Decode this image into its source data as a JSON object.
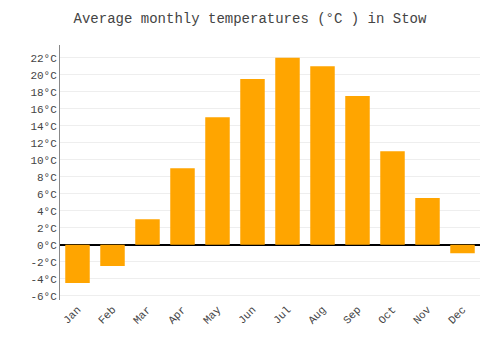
{
  "chart_data": {
    "type": "bar",
    "title": "Average monthly temperatures (°C ) in Stow",
    "categories": [
      "Jan",
      "Feb",
      "Mar",
      "Apr",
      "May",
      "Jun",
      "Jul",
      "Aug",
      "Sep",
      "Oct",
      "Nov",
      "Dec"
    ],
    "values": [
      -4.5,
      -2.5,
      3.0,
      9.0,
      15.0,
      19.5,
      22.0,
      21.0,
      17.5,
      11.0,
      5.5,
      -1.0
    ],
    "color": "#FFA500",
    "ylim": [
      -6.5,
      23.5
    ],
    "yticks": [
      {
        "value": -6,
        "label": "-6°C"
      },
      {
        "value": -4,
        "label": "-4°C"
      },
      {
        "value": -2,
        "label": "-2°C"
      },
      {
        "value": 0,
        "label": "0°C"
      },
      {
        "value": 2,
        "label": "2°C"
      },
      {
        "value": 4,
        "label": "4°C"
      },
      {
        "value": 6,
        "label": "6°C"
      },
      {
        "value": 8,
        "label": "8°C"
      },
      {
        "value": 10,
        "label": "10°C"
      },
      {
        "value": 12,
        "label": "12°C"
      },
      {
        "value": 14,
        "label": "14°C"
      },
      {
        "value": 16,
        "label": "16°C"
      },
      {
        "value": 18,
        "label": "18°C"
      },
      {
        "value": 20,
        "label": "20°C"
      },
      {
        "value": 22,
        "label": "22°C"
      }
    ],
    "grid": true
  }
}
